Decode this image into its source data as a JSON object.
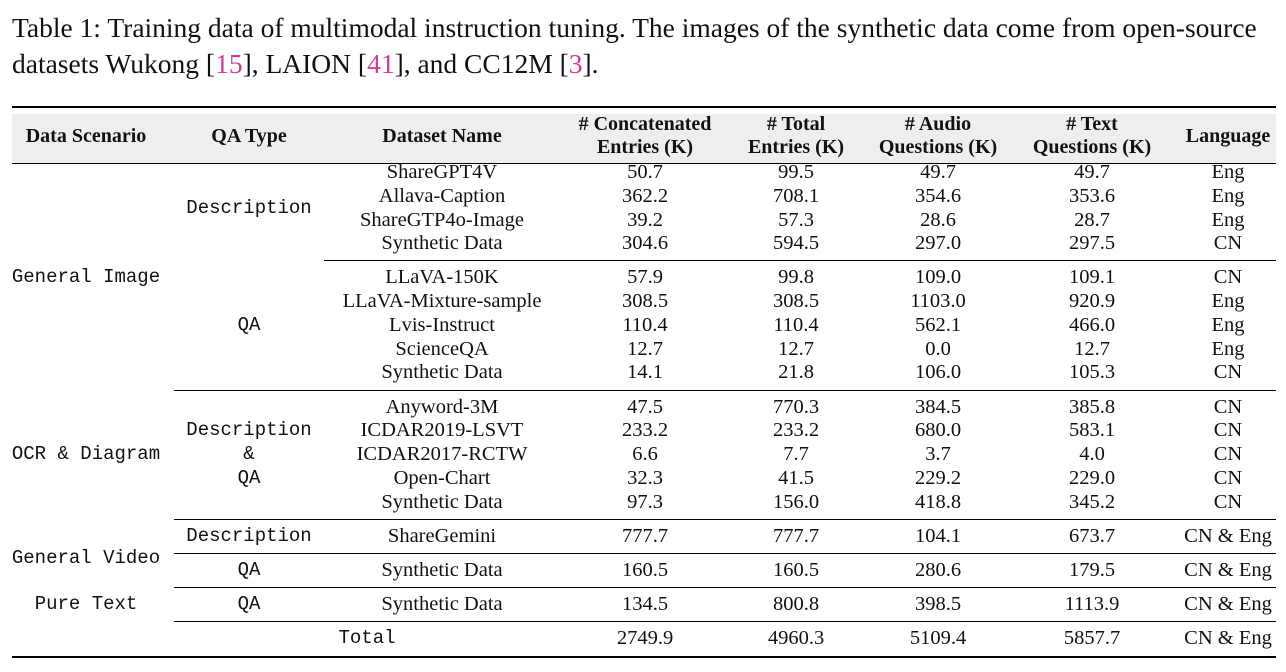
{
  "caption": {
    "prefix": "Table 1: Training data of multimodal instruction tuning. The images of the synthetic data come from open-source datasets Wukong [",
    "ref1": "15",
    "mid1": "], LAION [",
    "ref2": "41",
    "mid2": "], and CC12M [",
    "ref3": "3",
    "suffix": "]."
  },
  "headers": {
    "scenario": "Data Scenario",
    "qa_type": "QA Type",
    "dataset": "Dataset Name",
    "concat_1": "# Concatenated",
    "concat_2": "Entries (K)",
    "total_1": "# Total",
    "total_2": "Entries (K)",
    "audio_1": "# Audio",
    "audio_2": "Questions (K)",
    "text_1": "# Text",
    "text_2": "Questions (K)",
    "language": "Language"
  },
  "scenarios": {
    "general_image": "General Image",
    "ocr": "OCR & Diagram",
    "video": "General Video",
    "pure_text": "Pure Text"
  },
  "qa_types": {
    "gi_desc": "Description",
    "gi_qa": "QA",
    "ocr_desc": "Description",
    "ocr_amp": "&",
    "ocr_qa": "QA",
    "video_desc": "Description",
    "video_qa": "QA",
    "text_qa": "QA"
  },
  "rows": [
    {
      "name": "ShareGPT4V",
      "concat": "50.7",
      "total": "99.5",
      "audio": "49.7",
      "text": "49.7",
      "lang": "Eng"
    },
    {
      "name": "Allava-Caption",
      "concat": "362.2",
      "total": "708.1",
      "audio": "354.6",
      "text": "353.6",
      "lang": "Eng"
    },
    {
      "name": "ShareGTP4o-Image",
      "concat": "39.2",
      "total": "57.3",
      "audio": "28.6",
      "text": "28.7",
      "lang": "Eng"
    },
    {
      "name": "Synthetic Data",
      "concat": "304.6",
      "total": "594.5",
      "audio": "297.0",
      "text": "297.5",
      "lang": "CN"
    },
    {
      "name": "LLaVA-150K",
      "concat": "57.9",
      "total": "99.8",
      "audio": "109.0",
      "text": "109.1",
      "lang": "CN"
    },
    {
      "name": "LLaVA-Mixture-sample",
      "concat": "308.5",
      "total": "308.5",
      "audio": "1103.0",
      "text": "920.9",
      "lang": "Eng"
    },
    {
      "name": "Lvis-Instruct",
      "concat": "110.4",
      "total": "110.4",
      "audio": "562.1",
      "text": "466.0",
      "lang": "Eng"
    },
    {
      "name": "ScienceQA",
      "concat": "12.7",
      "total": "12.7",
      "audio": "0.0",
      "text": "12.7",
      "lang": "Eng"
    },
    {
      "name": "Synthetic Data",
      "concat": "14.1",
      "total": "21.8",
      "audio": "106.0",
      "text": "105.3",
      "lang": "CN"
    },
    {
      "name": "Anyword-3M",
      "concat": "47.5",
      "total": "770.3",
      "audio": "384.5",
      "text": "385.8",
      "lang": "CN"
    },
    {
      "name": "ICDAR2019-LSVT",
      "concat": "233.2",
      "total": "233.2",
      "audio": "680.0",
      "text": "583.1",
      "lang": "CN"
    },
    {
      "name": "ICDAR2017-RCTW",
      "concat": "6.6",
      "total": "7.7",
      "audio": "3.7",
      "text": "4.0",
      "lang": "CN"
    },
    {
      "name": "Open-Chart",
      "concat": "32.3",
      "total": "41.5",
      "audio": "229.2",
      "text": "229.0",
      "lang": "CN"
    },
    {
      "name": "Synthetic Data",
      "concat": "97.3",
      "total": "156.0",
      "audio": "418.8",
      "text": "345.2",
      "lang": "CN"
    },
    {
      "name": "ShareGemini",
      "concat": "777.7",
      "total": "777.7",
      "audio": "104.1",
      "text": "673.7",
      "lang": "CN & Eng"
    },
    {
      "name": "Synthetic Data",
      "concat": "160.5",
      "total": "160.5",
      "audio": "280.6",
      "text": "179.5",
      "lang": "CN & Eng"
    },
    {
      "name": "Synthetic Data",
      "concat": "134.5",
      "total": "800.8",
      "audio": "398.5",
      "text": "1113.9",
      "lang": "CN & Eng"
    }
  ],
  "total_row": {
    "name": "Total",
    "concat": "2749.9",
    "total": "4960.3",
    "audio": "5109.4",
    "text": "5857.7",
    "lang": "CN & Eng"
  }
}
